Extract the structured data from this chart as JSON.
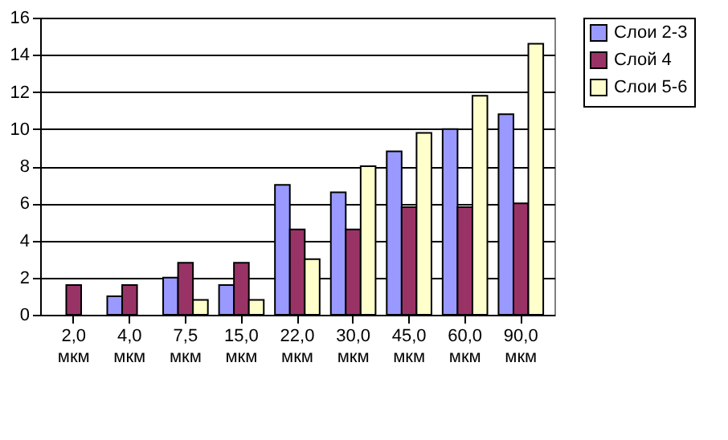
{
  "chart_data": {
    "type": "bar",
    "categories": [
      "2,0 мкм",
      "4,0 мкм",
      "7,5 мкм",
      "15,0 мкм",
      "22,0 мкм",
      "30,0 мкм",
      "45,0 мкм",
      "60,0 мкм",
      "90,0 мкм"
    ],
    "series": [
      {
        "name": "Слои 2-3",
        "color": "#9999ff",
        "values": [
          null,
          1,
          2,
          1.6,
          7,
          6.6,
          8.8,
          10,
          10.8
        ]
      },
      {
        "name": "Слой 4",
        "color": "#993366",
        "values": [
          1.6,
          1.6,
          2.8,
          2.8,
          4.6,
          4.6,
          5.8,
          5.8,
          6
        ]
      },
      {
        "name": "Слои 5-6",
        "color": "#ffffcc",
        "values": [
          null,
          null,
          0.8,
          0.8,
          3,
          8,
          9.8,
          11.8,
          14.6
        ]
      }
    ],
    "ylim": [
      0,
      16
    ],
    "yticks": [
      0,
      2,
      4,
      6,
      8,
      10,
      12,
      14,
      16
    ],
    "grid": "y",
    "legend": "right"
  }
}
